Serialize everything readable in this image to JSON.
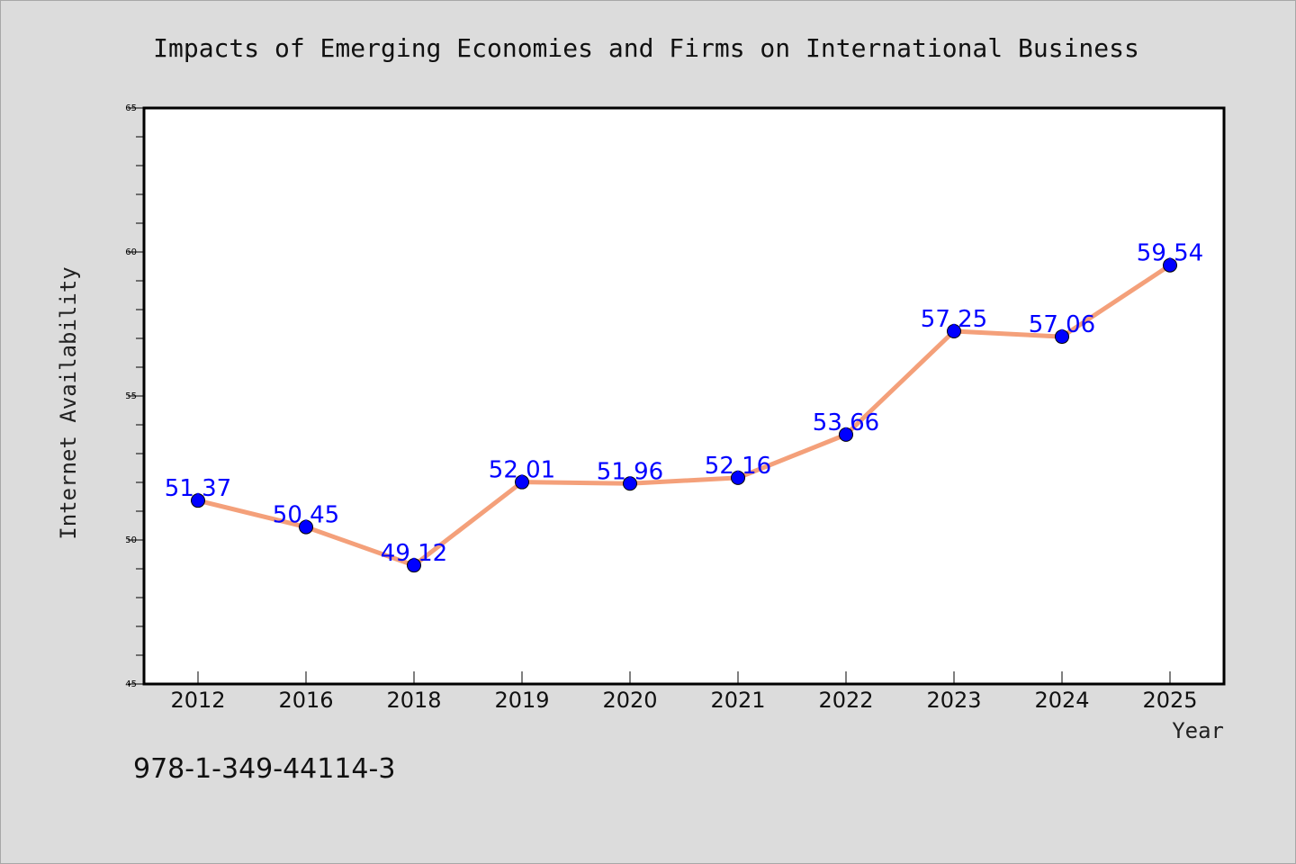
{
  "chart_data": {
    "type": "line",
    "title": "Impacts of Emerging Economies and Firms on International Business",
    "xlabel": "Year",
    "ylabel": "Internet Availability",
    "categories": [
      "2012",
      "2016",
      "2018",
      "2019",
      "2020",
      "2021",
      "2022",
      "2023",
      "2024",
      "2025"
    ],
    "series": [
      {
        "values": [
          51.37,
          50.45,
          49.12,
          52.01,
          51.96,
          52.16,
          53.66,
          57.25,
          57.06,
          59.54
        ]
      }
    ],
    "data_labels": [
      "51.37",
      "50.45",
      "49.12",
      "52.01",
      "51.96",
      "52.16",
      "53.66",
      "57.25",
      "57.06",
      "59.54"
    ],
    "ylim": [
      45,
      65
    ],
    "yticks": [
      "45",
      "50",
      "55",
      "60",
      "65"
    ],
    "grid": false,
    "legend": "none",
    "colors": {
      "line": "#f4a07a",
      "marker": "#0000ff",
      "data_label": "#0000ff",
      "background": "#dcdcdc",
      "plot_background": "#ffffff"
    }
  },
  "footer": {
    "isbn": "978-1-349-44114-3"
  }
}
